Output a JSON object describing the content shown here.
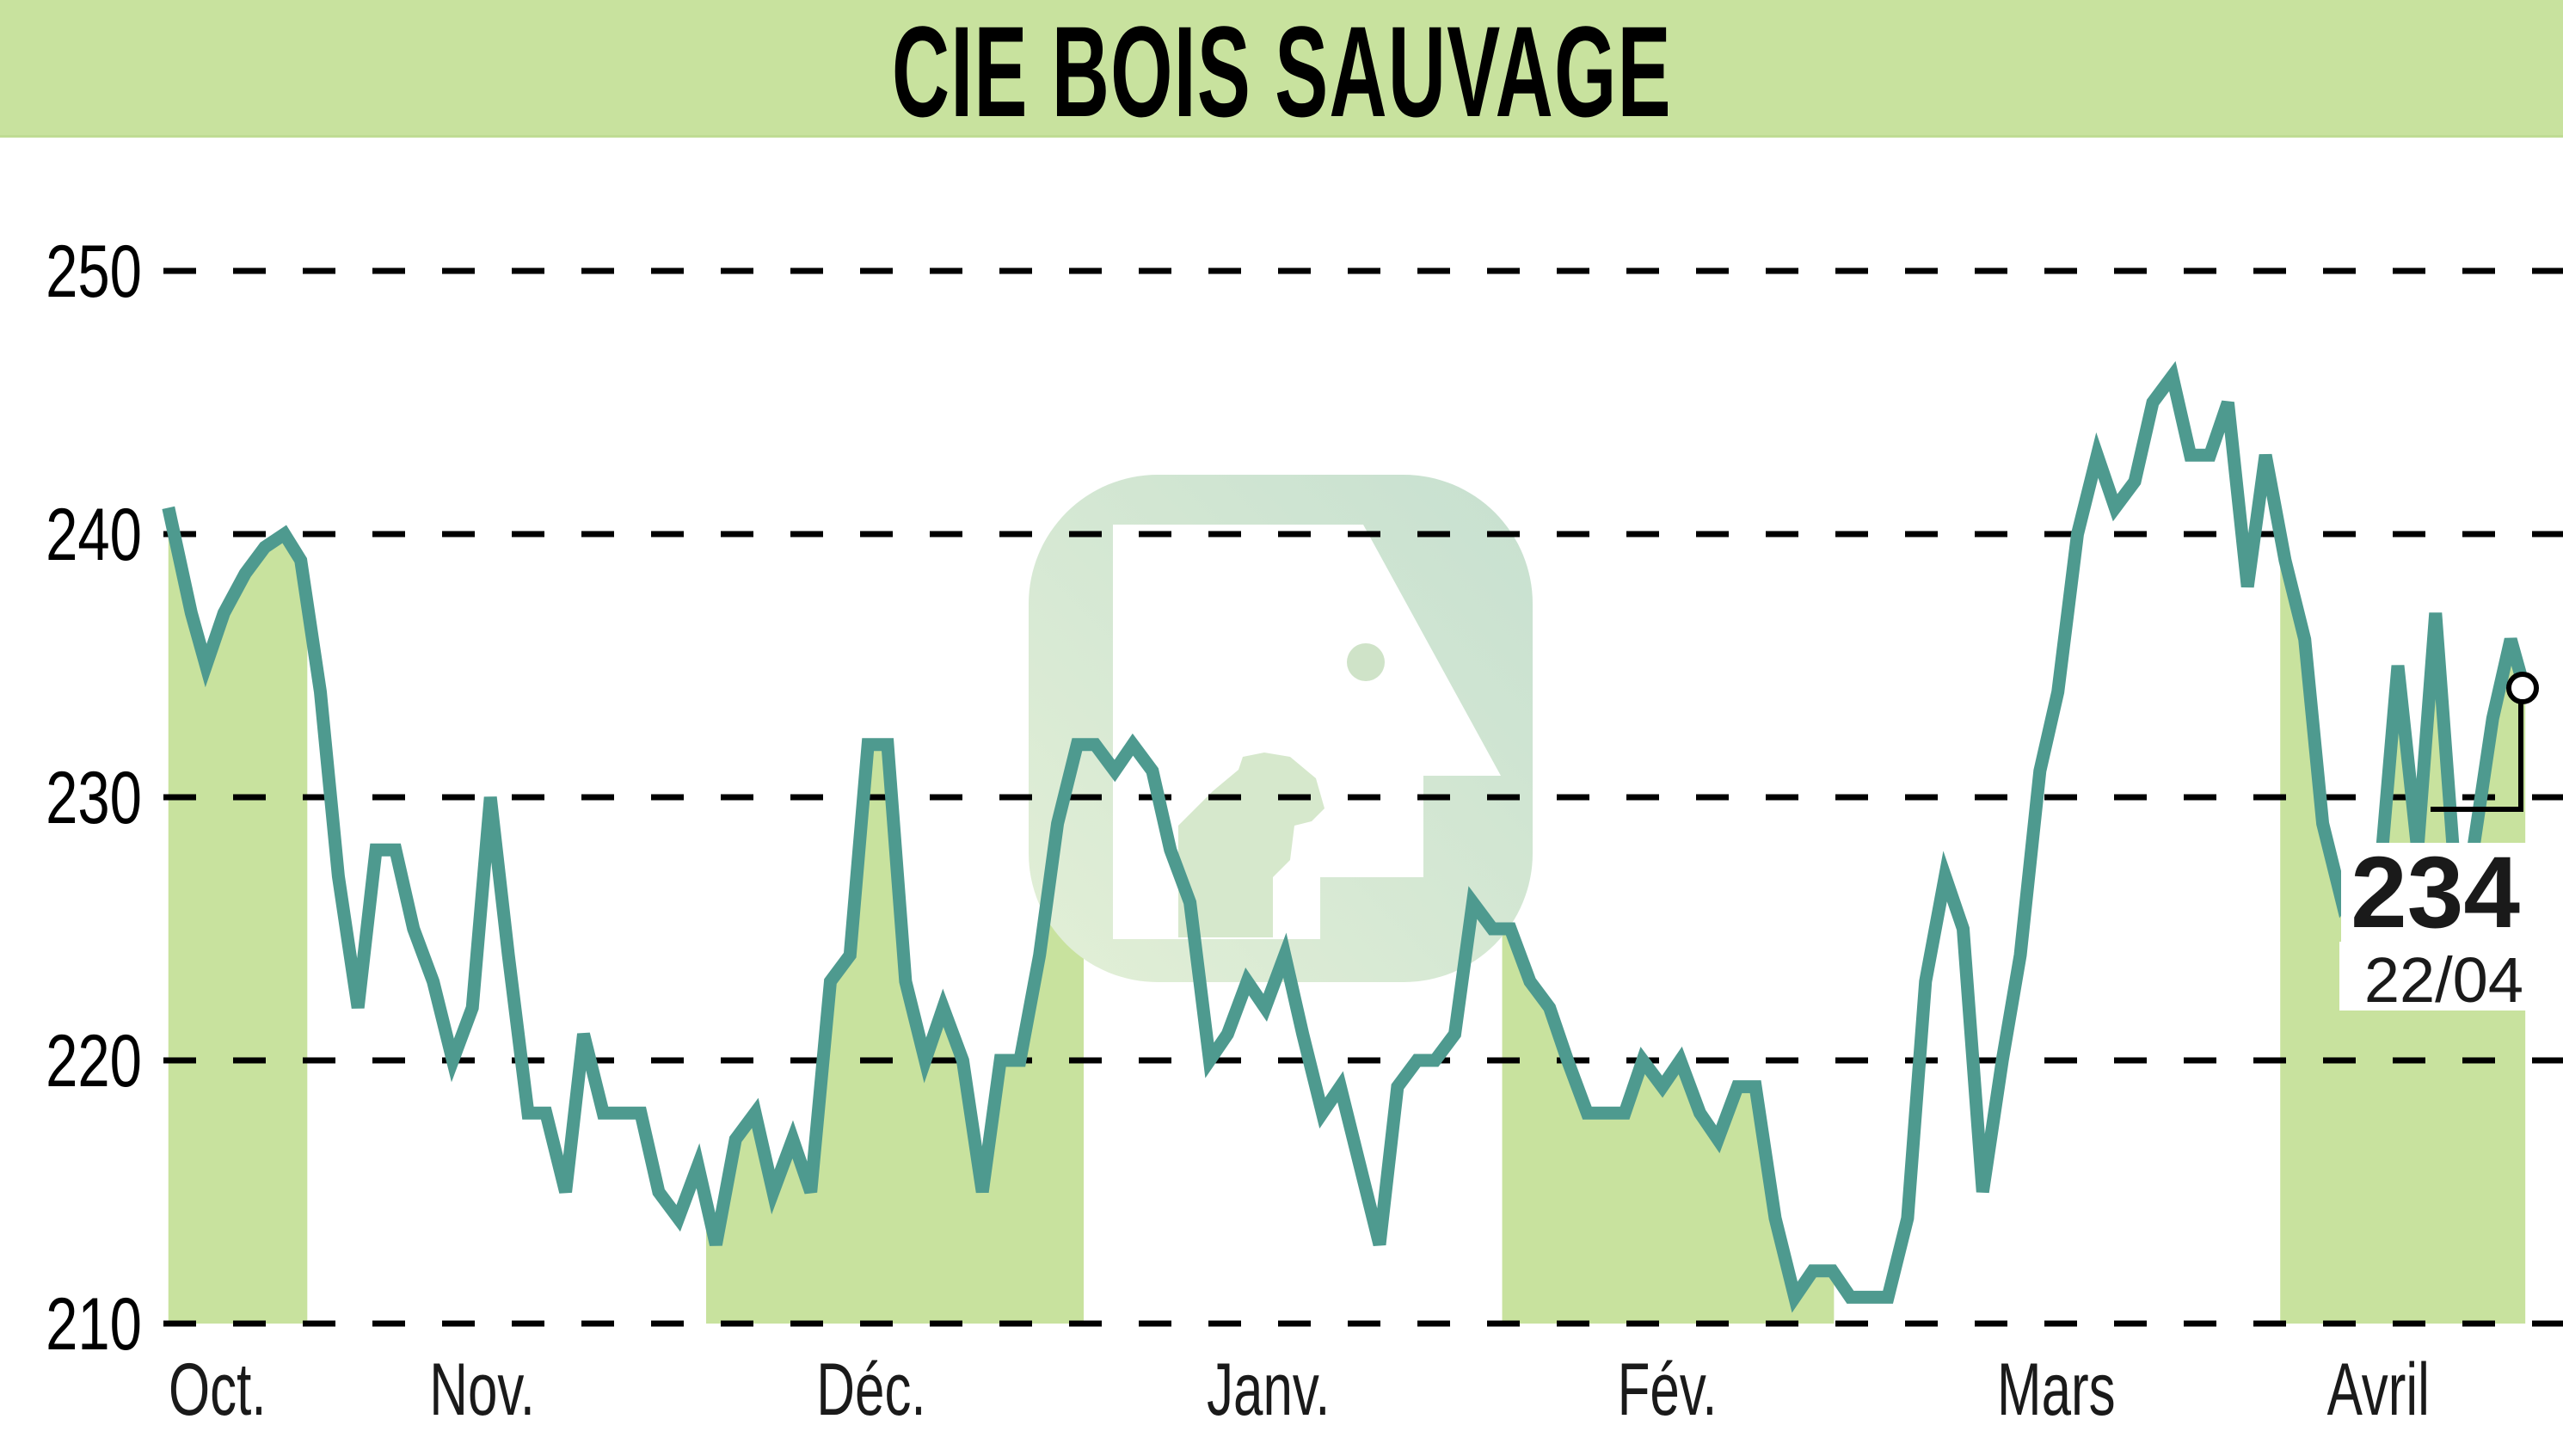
{
  "header": {
    "title": "CIE BOIS SAUVAGE"
  },
  "colors": {
    "header_bg": "#c8e29e",
    "fill": "#c8e29e",
    "line": "#4e9a8f",
    "grid": "#000000",
    "watermark": "#cfe3c8"
  },
  "last": {
    "value": "234",
    "date": "22/04"
  },
  "chart_data": {
    "type": "line",
    "title": "CIE BOIS SAUVAGE",
    "xlabel": "",
    "ylabel": "",
    "ylim": [
      210,
      250
    ],
    "yticks": [
      210,
      220,
      230,
      240,
      250
    ],
    "grid": true,
    "grid_style": "dashed horizontal",
    "legend": "none",
    "month_labels": [
      "Oct.",
      "Nov.",
      "Déc.",
      "Janv.",
      "Fév.",
      "Mars",
      "Avril"
    ],
    "month_label_x": [
      133,
      295,
      533,
      776,
      1020,
      1258,
      1455
    ],
    "shaded_month_bands": [
      [
        97,
        188
      ],
      [
        432,
        663
      ],
      [
        919,
        1122
      ],
      [
        1395,
        1545
      ]
    ],
    "x": [
      103,
      117,
      126,
      137,
      150,
      162,
      174,
      184,
      196,
      207,
      219,
      230,
      242,
      253,
      265,
      277,
      289,
      300,
      311,
      323,
      334,
      346,
      357,
      369,
      380,
      392,
      403,
      415,
      427,
      438,
      450,
      462,
      473,
      485,
      496,
      508,
      520,
      531,
      543,
      554,
      566,
      577,
      589,
      601,
      612,
      624,
      636,
      647,
      659,
      670,
      682,
      693,
      705,
      716,
      728,
      740,
      751,
      763,
      774,
      786,
      797,
      809,
      820,
      832,
      844,
      855,
      867,
      878,
      890,
      901,
      913,
      924,
      936,
      948,
      959,
      971,
      982,
      994,
      1005,
      1017,
      1028,
      1040,
      1051,
      1063,
      1074,
      1086,
      1098,
      1109,
      1121,
      1132,
      1144,
      1155,
      1167,
      1178,
      1190,
      1201,
      1213,
      1225,
      1236,
      1248,
      1259,
      1271,
      1283,
      1294,
      1306,
      1317,
      1329,
      1340,
      1352,
      1363,
      1375,
      1386,
      1398,
      1410,
      1421,
      1433,
      1444,
      1456,
      1467,
      1479,
      1490,
      1502,
      1513,
      1525,
      1536,
      1545
    ],
    "series": [
      {
        "name": "CIE BOIS SAUVAGE",
        "values": [
          241,
          237,
          235,
          237,
          238.5,
          239.5,
          240,
          239,
          234,
          227,
          222,
          228,
          228,
          225,
          223,
          220,
          222,
          230,
          224,
          218,
          218,
          215,
          221,
          218,
          218,
          218,
          215,
          214,
          216,
          213,
          217,
          218,
          215,
          217,
          215,
          223,
          224,
          232,
          232,
          223,
          220,
          222,
          220,
          215,
          220,
          220,
          224,
          229,
          232,
          232,
          231,
          232,
          231,
          228,
          226,
          220,
          221,
          223,
          222,
          224,
          221,
          218,
          219,
          216,
          213,
          219,
          220,
          220,
          221,
          226,
          225,
          225,
          223,
          222,
          220,
          218,
          218,
          218,
          220,
          219,
          220,
          218,
          217,
          219,
          219,
          214,
          211,
          212,
          212,
          211,
          211,
          211,
          214,
          223,
          227,
          225,
          215,
          220,
          224,
          231,
          234,
          240,
          243,
          241,
          242,
          245,
          246,
          243,
          243,
          245,
          238,
          243,
          239,
          236,
          229,
          226,
          227,
          227,
          235,
          228,
          237,
          227,
          228,
          233,
          236,
          234
        ]
      }
    ],
    "annotation": {
      "last_value": 234,
      "last_date": "22/04"
    }
  }
}
